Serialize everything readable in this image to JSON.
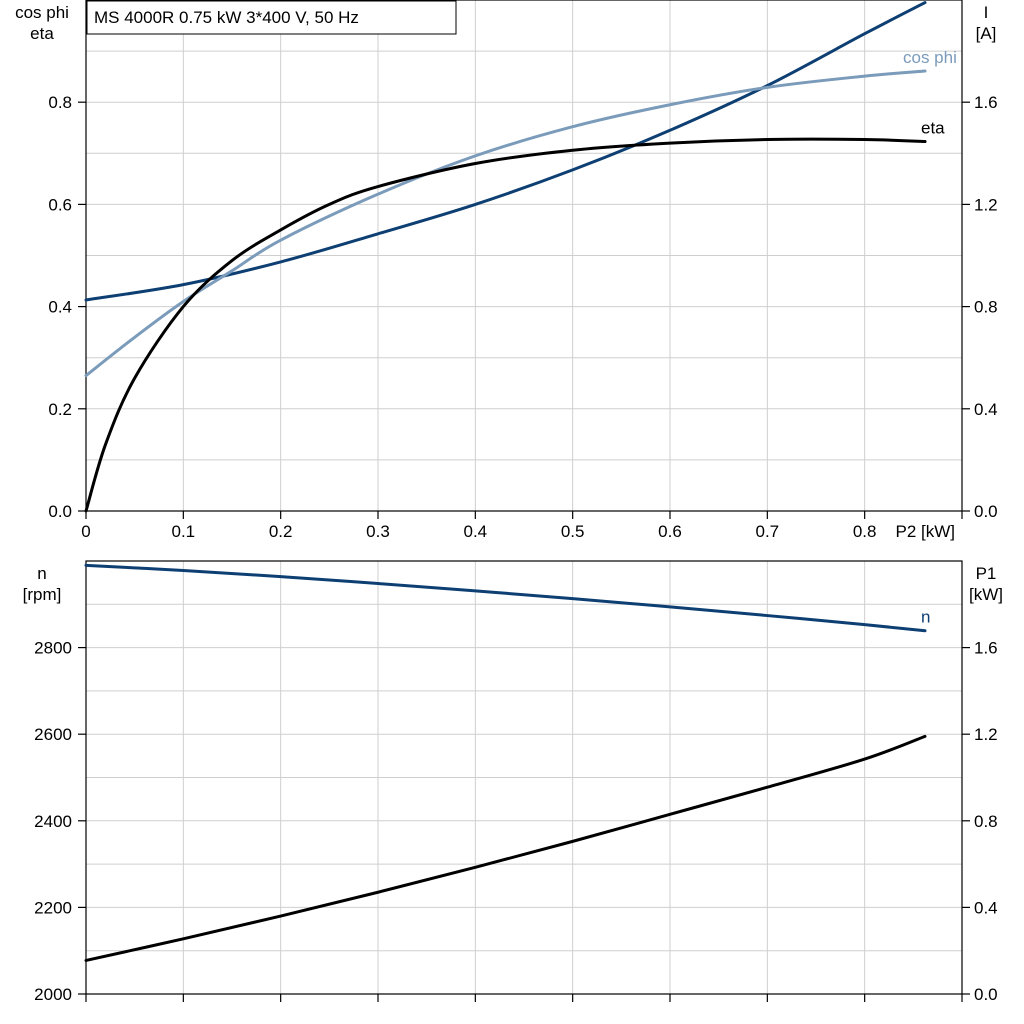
{
  "chart_data": [
    {
      "type": "line",
      "title": "MS 4000R   0.75 kW   3*400 V, 50 Hz",
      "xlabel": "P2 [kW]",
      "xlim": [
        0,
        0.9
      ],
      "xticks": [
        "0",
        "0.1",
        "0.2",
        "0.3",
        "0.4",
        "0.5",
        "0.6",
        "0.7",
        "0.8"
      ],
      "ylabel_left": [
        "cos phi",
        "eta"
      ],
      "ylim_left": [
        0,
        1.0
      ],
      "yticks_left": [
        "0.0",
        "0.2",
        "0.4",
        "0.6",
        "0.8"
      ],
      "ylabel_right": [
        "I",
        "[A]"
      ],
      "ylim_right": [
        0,
        2.0
      ],
      "yticks_right": [
        "0.0",
        "0.4",
        "0.8",
        "1.2",
        "1.6"
      ],
      "grid": true,
      "series": [
        {
          "name": "I",
          "axis": "right",
          "color": "#0d3f73",
          "points": [
            [
              0,
              0.826
            ],
            [
              0.1,
              0.886
            ],
            [
              0.2,
              0.975
            ],
            [
              0.3,
              1.085
            ],
            [
              0.4,
              1.2
            ],
            [
              0.5,
              1.335
            ],
            [
              0.6,
              1.49
            ],
            [
              0.7,
              1.665
            ],
            [
              0.8,
              1.868
            ],
            [
              0.862,
              1.99
            ]
          ]
        },
        {
          "name": "cos phi",
          "axis": "left",
          "color": "#7b9bbb",
          "points": [
            [
              0,
              0.265
            ],
            [
              0.05,
              0.34
            ],
            [
              0.1,
              0.41
            ],
            [
              0.15,
              0.47
            ],
            [
              0.2,
              0.53
            ],
            [
              0.3,
              0.62
            ],
            [
              0.4,
              0.695
            ],
            [
              0.5,
              0.752
            ],
            [
              0.6,
              0.795
            ],
            [
              0.7,
              0.829
            ],
            [
              0.8,
              0.851
            ],
            [
              0.862,
              0.861
            ]
          ]
        },
        {
          "name": "eta",
          "axis": "left",
          "color": "#000000",
          "points": [
            [
              0,
              0.0
            ],
            [
              0.02,
              0.13
            ],
            [
              0.05,
              0.26
            ],
            [
              0.1,
              0.4
            ],
            [
              0.15,
              0.49
            ],
            [
              0.2,
              0.55
            ],
            [
              0.25,
              0.6
            ],
            [
              0.3,
              0.635
            ],
            [
              0.4,
              0.68
            ],
            [
              0.5,
              0.706
            ],
            [
              0.6,
              0.72
            ],
            [
              0.7,
              0.727
            ],
            [
              0.8,
              0.727
            ],
            [
              0.862,
              0.723
            ]
          ]
        }
      ]
    },
    {
      "type": "line",
      "xlim": [
        0,
        0.9
      ],
      "ylabel_left": [
        "n",
        "[rpm]"
      ],
      "ylim_left": [
        2000,
        3000
      ],
      "yticks_left": [
        "2000",
        "2200",
        "2400",
        "2600",
        "2800"
      ],
      "ylabel_right": [
        "P1",
        "[kW]"
      ],
      "ylim_right": [
        0,
        2.0
      ],
      "yticks_right": [
        "0.0",
        "0.4",
        "0.8",
        "1.2",
        "1.6"
      ],
      "grid": true,
      "series": [
        {
          "name": "n",
          "axis": "left",
          "color": "#0d3f73",
          "points": [
            [
              0,
              2990
            ],
            [
              0.1,
              2978
            ],
            [
              0.2,
              2964
            ],
            [
              0.3,
              2948
            ],
            [
              0.4,
              2931
            ],
            [
              0.5,
              2913
            ],
            [
              0.6,
              2894
            ],
            [
              0.7,
              2874
            ],
            [
              0.8,
              2853
            ],
            [
              0.862,
              2839
            ]
          ]
        },
        {
          "name": "",
          "axis": "right",
          "color": "#000000",
          "points": [
            [
              0,
              0.155
            ],
            [
              0.1,
              0.255
            ],
            [
              0.2,
              0.36
            ],
            [
              0.3,
              0.47
            ],
            [
              0.4,
              0.585
            ],
            [
              0.5,
              0.705
            ],
            [
              0.6,
              0.83
            ],
            [
              0.7,
              0.955
            ],
            [
              0.8,
              1.085
            ],
            [
              0.862,
              1.19
            ]
          ]
        }
      ]
    }
  ]
}
